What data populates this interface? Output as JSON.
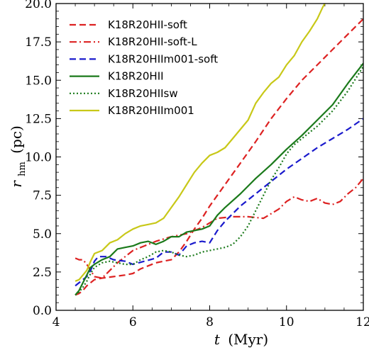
{
  "chart_data": {
    "type": "line",
    "xlabel": {
      "main": "t",
      "unit": "(Myr)"
    },
    "ylabel": {
      "main": "r",
      "sub": "hm",
      "unit": "(pc)"
    },
    "xlim": [
      4,
      12
    ],
    "ylim": [
      0,
      20
    ],
    "xticks": [
      4,
      6,
      8,
      10,
      12
    ],
    "xtick_labels": [
      "4",
      "6",
      "8",
      "10",
      "12"
    ],
    "yticks": [
      0,
      2.5,
      5,
      7.5,
      10,
      12.5,
      15,
      17.5,
      20
    ],
    "ytick_labels": [
      "0.0",
      "2.5",
      "5.0",
      "7.5",
      "10.0",
      "12.5",
      "15.0",
      "17.5",
      "20.0"
    ],
    "legend": {
      "position": "upper-left"
    },
    "series": [
      {
        "name": "K18R20HII-soft",
        "color": "#dd2222",
        "style": "dashed",
        "points": [
          [
            4.5,
            1.0
          ],
          [
            4.6,
            1.1
          ],
          [
            4.7,
            1.3
          ],
          [
            4.8,
            1.6
          ],
          [
            4.9,
            1.8
          ],
          [
            5.0,
            2.0
          ],
          [
            5.2,
            2.1
          ],
          [
            5.5,
            2.2
          ],
          [
            5.8,
            2.3
          ],
          [
            6.0,
            2.4
          ],
          [
            6.2,
            2.7
          ],
          [
            6.4,
            2.9
          ],
          [
            6.6,
            3.1
          ],
          [
            6.8,
            3.2
          ],
          [
            7.0,
            3.3
          ],
          [
            7.2,
            3.8
          ],
          [
            7.4,
            4.5
          ],
          [
            7.6,
            5.3
          ],
          [
            7.8,
            6.0
          ],
          [
            8.0,
            6.8
          ],
          [
            8.4,
            8.2
          ],
          [
            8.8,
            9.6
          ],
          [
            9.2,
            11.0
          ],
          [
            9.6,
            12.5
          ],
          [
            10.0,
            13.8
          ],
          [
            10.4,
            15.0
          ],
          [
            10.8,
            16.0
          ],
          [
            11.2,
            17.0
          ],
          [
            11.6,
            18.0
          ],
          [
            12.0,
            19.0
          ]
        ]
      },
      {
        "name": "K18R20HII-soft-L",
        "color": "#dd2222",
        "style": "dashdot",
        "points": [
          [
            4.5,
            3.4
          ],
          [
            4.6,
            3.3
          ],
          [
            4.7,
            3.3
          ],
          [
            4.8,
            3.0
          ],
          [
            4.9,
            2.6
          ],
          [
            5.0,
            2.2
          ],
          [
            5.2,
            2.1
          ],
          [
            5.4,
            2.6
          ],
          [
            5.6,
            3.1
          ],
          [
            5.8,
            3.5
          ],
          [
            6.0,
            3.9
          ],
          [
            6.3,
            4.2
          ],
          [
            6.6,
            4.5
          ],
          [
            7.0,
            4.8
          ],
          [
            7.4,
            5.0
          ],
          [
            7.8,
            5.4
          ],
          [
            8.2,
            6.0
          ],
          [
            8.6,
            6.1
          ],
          [
            9.0,
            6.1
          ],
          [
            9.4,
            6.0
          ],
          [
            9.8,
            6.6
          ],
          [
            10.0,
            7.1
          ],
          [
            10.2,
            7.4
          ],
          [
            10.4,
            7.2
          ],
          [
            10.6,
            7.1
          ],
          [
            10.8,
            7.3
          ],
          [
            11.0,
            7.0
          ],
          [
            11.2,
            6.9
          ],
          [
            11.4,
            7.1
          ],
          [
            11.6,
            7.6
          ],
          [
            11.8,
            8.0
          ],
          [
            12.0,
            8.6
          ]
        ]
      },
      {
        "name": "K18R20HIIm001-soft",
        "color": "#1a1acc",
        "style": "dashed",
        "points": [
          [
            4.5,
            1.6
          ],
          [
            4.6,
            1.8
          ],
          [
            4.7,
            2.0
          ],
          [
            4.8,
            2.2
          ],
          [
            4.9,
            2.6
          ],
          [
            5.0,
            3.2
          ],
          [
            5.1,
            3.5
          ],
          [
            5.3,
            3.5
          ],
          [
            5.5,
            3.3
          ],
          [
            5.8,
            3.2
          ],
          [
            6.0,
            3.0
          ],
          [
            6.3,
            3.2
          ],
          [
            6.6,
            3.4
          ],
          [
            6.8,
            3.8
          ],
          [
            7.0,
            3.8
          ],
          [
            7.2,
            3.6
          ],
          [
            7.4,
            4.2
          ],
          [
            7.6,
            4.4
          ],
          [
            7.8,
            4.5
          ],
          [
            8.0,
            4.4
          ],
          [
            8.2,
            5.2
          ],
          [
            8.4,
            5.8
          ],
          [
            8.8,
            6.8
          ],
          [
            9.2,
            7.6
          ],
          [
            9.6,
            8.4
          ],
          [
            10.0,
            9.2
          ],
          [
            10.4,
            9.9
          ],
          [
            10.8,
            10.6
          ],
          [
            11.2,
            11.2
          ],
          [
            11.6,
            11.8
          ],
          [
            12.0,
            12.5
          ]
        ]
      },
      {
        "name": "K18R20HII",
        "color": "#1b7a1b",
        "style": "solid",
        "points": [
          [
            4.5,
            1.0
          ],
          [
            4.6,
            1.3
          ],
          [
            4.7,
            1.8
          ],
          [
            4.8,
            2.3
          ],
          [
            4.9,
            2.8
          ],
          [
            5.0,
            3.0
          ],
          [
            5.2,
            3.3
          ],
          [
            5.4,
            3.5
          ],
          [
            5.6,
            4.0
          ],
          [
            5.8,
            4.1
          ],
          [
            6.0,
            4.2
          ],
          [
            6.2,
            4.4
          ],
          [
            6.4,
            4.5
          ],
          [
            6.6,
            4.3
          ],
          [
            6.8,
            4.5
          ],
          [
            7.0,
            4.8
          ],
          [
            7.2,
            4.8
          ],
          [
            7.4,
            5.1
          ],
          [
            7.6,
            5.2
          ],
          [
            7.8,
            5.3
          ],
          [
            8.0,
            5.5
          ],
          [
            8.2,
            6.2
          ],
          [
            8.4,
            6.7
          ],
          [
            8.8,
            7.6
          ],
          [
            9.2,
            8.6
          ],
          [
            9.6,
            9.5
          ],
          [
            10.0,
            10.5
          ],
          [
            10.4,
            11.4
          ],
          [
            10.8,
            12.4
          ],
          [
            11.2,
            13.4
          ],
          [
            11.6,
            14.8
          ],
          [
            12.0,
            16.1
          ]
        ]
      },
      {
        "name": "K18R20HIIsw",
        "color": "#1b7a1b",
        "style": "dotted",
        "points": [
          [
            4.5,
            1.0
          ],
          [
            4.6,
            1.2
          ],
          [
            4.7,
            1.5
          ],
          [
            4.8,
            1.9
          ],
          [
            4.9,
            2.4
          ],
          [
            5.0,
            2.8
          ],
          [
            5.2,
            3.1
          ],
          [
            5.4,
            3.2
          ],
          [
            5.6,
            3.1
          ],
          [
            5.8,
            3.0
          ],
          [
            6.0,
            3.0
          ],
          [
            6.2,
            3.3
          ],
          [
            6.4,
            3.5
          ],
          [
            6.6,
            3.8
          ],
          [
            6.8,
            3.9
          ],
          [
            7.0,
            3.8
          ],
          [
            7.2,
            3.6
          ],
          [
            7.4,
            3.5
          ],
          [
            7.6,
            3.6
          ],
          [
            7.8,
            3.8
          ],
          [
            8.0,
            3.9
          ],
          [
            8.2,
            4.0
          ],
          [
            8.4,
            4.1
          ],
          [
            8.6,
            4.3
          ],
          [
            8.8,
            4.8
          ],
          [
            9.0,
            5.5
          ],
          [
            9.2,
            6.5
          ],
          [
            9.4,
            7.5
          ],
          [
            9.6,
            8.5
          ],
          [
            9.8,
            9.3
          ],
          [
            10.0,
            10.2
          ],
          [
            10.2,
            10.8
          ],
          [
            10.4,
            11.2
          ],
          [
            10.8,
            12.0
          ],
          [
            11.2,
            13.0
          ],
          [
            11.6,
            14.3
          ],
          [
            12.0,
            15.9
          ]
        ]
      },
      {
        "name": "K18R20HIIm001",
        "color": "#c8c818",
        "style": "solid",
        "points": [
          [
            4.5,
            1.9
          ],
          [
            4.6,
            2.0
          ],
          [
            4.7,
            2.3
          ],
          [
            4.8,
            2.6
          ],
          [
            4.9,
            3.2
          ],
          [
            5.0,
            3.7
          ],
          [
            5.2,
            3.9
          ],
          [
            5.4,
            4.4
          ],
          [
            5.6,
            4.6
          ],
          [
            5.8,
            5.0
          ],
          [
            6.0,
            5.3
          ],
          [
            6.2,
            5.5
          ],
          [
            6.4,
            5.6
          ],
          [
            6.6,
            5.7
          ],
          [
            6.8,
            6.0
          ],
          [
            7.0,
            6.7
          ],
          [
            7.2,
            7.4
          ],
          [
            7.4,
            8.2
          ],
          [
            7.6,
            9.0
          ],
          [
            7.8,
            9.6
          ],
          [
            8.0,
            10.1
          ],
          [
            8.2,
            10.3
          ],
          [
            8.4,
            10.6
          ],
          [
            8.6,
            11.2
          ],
          [
            8.8,
            11.8
          ],
          [
            9.0,
            12.4
          ],
          [
            9.2,
            13.5
          ],
          [
            9.4,
            14.2
          ],
          [
            9.6,
            14.8
          ],
          [
            9.8,
            15.2
          ],
          [
            10.0,
            16.0
          ],
          [
            10.2,
            16.6
          ],
          [
            10.4,
            17.5
          ],
          [
            10.6,
            18.2
          ],
          [
            10.8,
            19.0
          ],
          [
            10.95,
            19.8
          ],
          [
            11.0,
            20.0
          ]
        ]
      }
    ]
  }
}
